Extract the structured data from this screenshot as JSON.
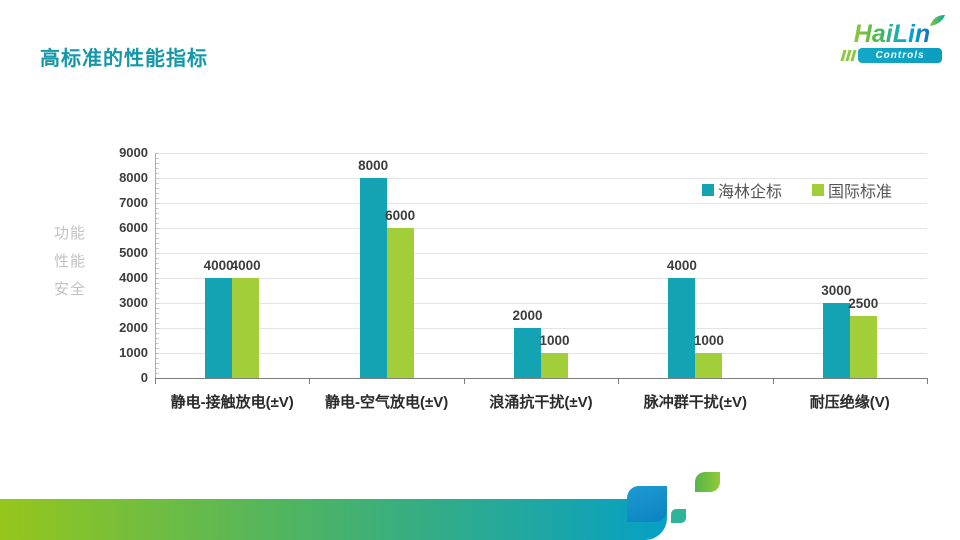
{
  "title": {
    "text": "高标准的性能指标",
    "color": "#1597A8"
  },
  "logo": {
    "brand": "HaiLin",
    "sub": "Controls",
    "green": "#8DC63F",
    "blue": "#1173B9",
    "badge_color": "#0FA3C4"
  },
  "side_labels": [
    "功能",
    "性能",
    "安全"
  ],
  "chart_data": {
    "type": "bar",
    "title": "",
    "categories": [
      "静电-接触放电(±V)",
      "静电-空气放电(±V)",
      "浪涌抗干扰(±V)",
      "脉冲群干扰(±V)",
      "耐压绝缘(V)"
    ],
    "series": [
      {
        "name": "海林企标",
        "color": "#14A3B2",
        "values": [
          4000,
          8000,
          2000,
          4000,
          3000
        ]
      },
      {
        "name": "国际标准",
        "color": "#A2CE39",
        "values": [
          4000,
          6000,
          1000,
          1000,
          2500
        ]
      }
    ],
    "xlabel": "",
    "ylabel": "",
    "ylim": [
      0,
      9000
    ],
    "yticks": [
      0,
      1000,
      2000,
      3000,
      4000,
      5000,
      6000,
      7000,
      8000,
      9000
    ],
    "grid": true,
    "value_labels": true,
    "legend_position": "top-right"
  },
  "deco_colors": {
    "bar_gradient_left": "#95C61C",
    "bar_gradient_right": "#05A0C6",
    "cap_blue": "#0C82C0",
    "small_square": "#2EB49B",
    "leaf_green": "#92CA35"
  }
}
